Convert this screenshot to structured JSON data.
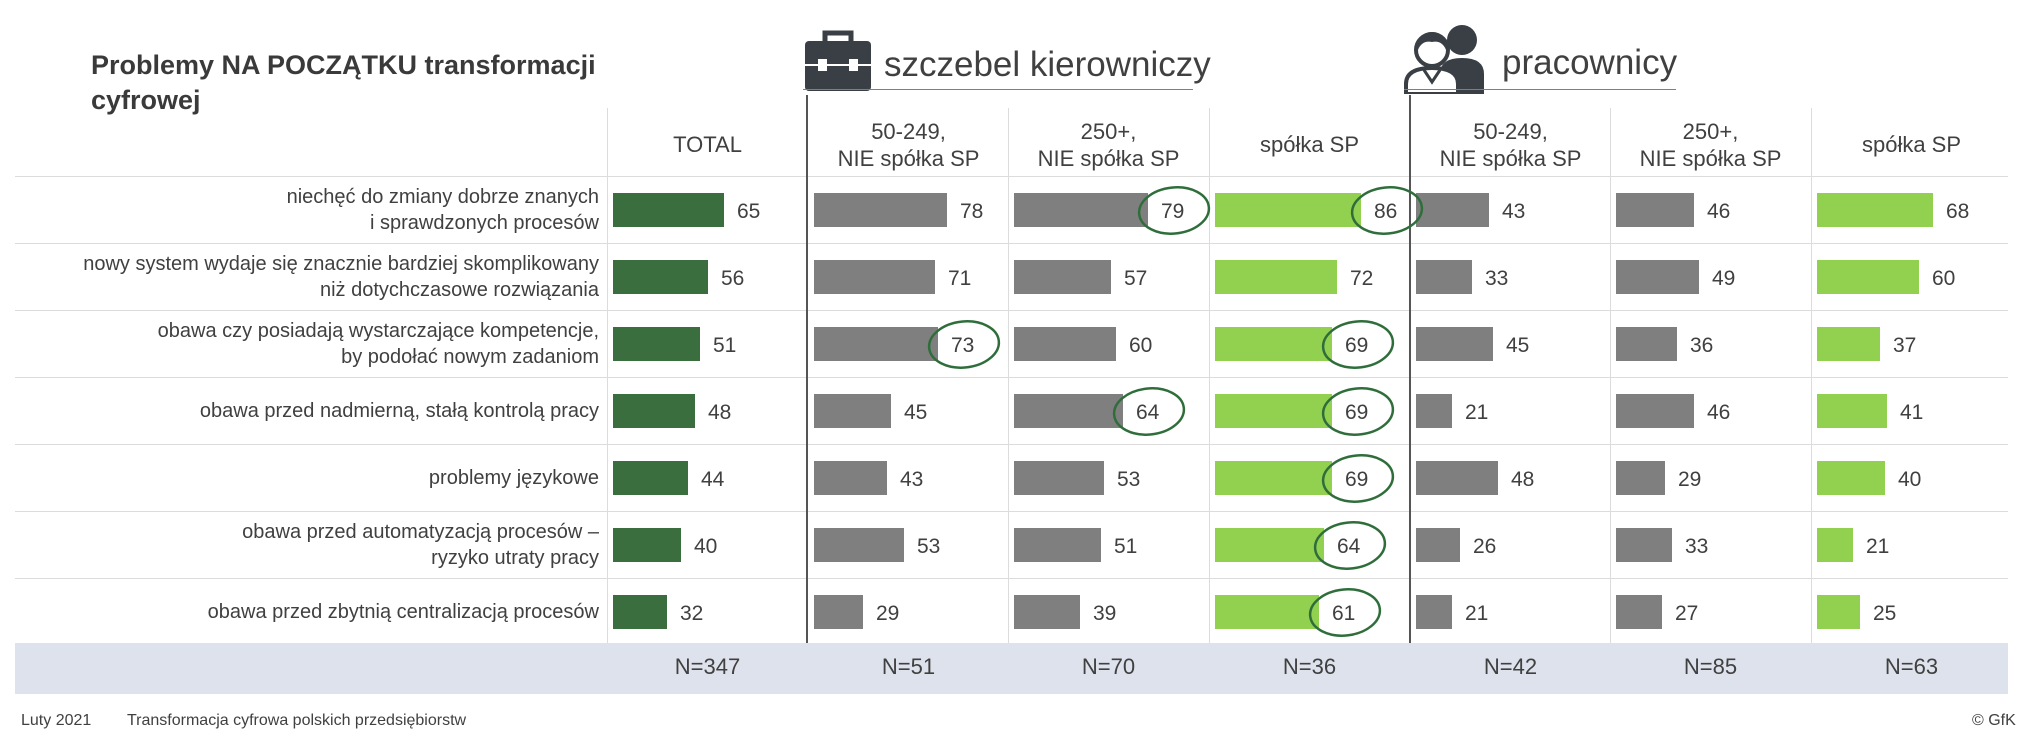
{
  "title": "Problemy NA POCZĄTKU transformacji cyfrowej",
  "groups": {
    "managers": "szczebel kierowniczy",
    "workers": "pracownicy"
  },
  "icons": [
    "briefcase-icon",
    "people-icon"
  ],
  "colors": {
    "total_bar": "#3b6e3f",
    "grey_bar": "#7f7f7f",
    "sp_bar": "#92d050",
    "highlight_circle": "#2f6e3b"
  },
  "footer": {
    "date": "Luty 2021",
    "source": "Transformacja cyfrowa polskich przedsiębiorstw",
    "copyright": "© GfK"
  },
  "chart_data": {
    "type": "bar",
    "title": "Problemy NA POCZĄTKU transformacji cyfrowej",
    "categories": [
      "niechęć do zmiany dobrze znanych\ni sprawdzonych procesów",
      "nowy system wydaje się znacznie bardziej skomplikowany\nniż dotychczasowe rozwiązania",
      "obawa czy posiadają wystarczające kompetencje,\nby podołać nowym zadaniom",
      "obawa przed nadmierną, stałą kontrolą pracy",
      "problemy językowe",
      "obawa przed automatyzacją procesów –\nryzyko utraty pracy",
      "obawa przed zbytnią centralizacją procesów"
    ],
    "series": [
      {
        "name": "TOTAL",
        "group": "",
        "n": "N=347",
        "color": "total",
        "values": [
          65,
          56,
          51,
          48,
          44,
          40,
          32
        ],
        "highlighted": []
      },
      {
        "name": "50-249,\nNIE spółka SP",
        "group": "szczebel kierowniczy",
        "n": "N=51",
        "color": "grey",
        "values": [
          78,
          71,
          73,
          45,
          43,
          53,
          29
        ],
        "highlighted": [
          2
        ]
      },
      {
        "name": "250+,\nNIE spółka SP",
        "group": "szczebel kierowniczy",
        "n": "N=70",
        "color": "grey",
        "values": [
          79,
          57,
          60,
          64,
          53,
          51,
          39
        ],
        "highlighted": [
          0,
          3
        ]
      },
      {
        "name": "spółka SP",
        "group": "szczebel kierowniczy",
        "n": "N=36",
        "color": "sp",
        "values": [
          86,
          72,
          69,
          69,
          69,
          64,
          61
        ],
        "highlighted": [
          0,
          2,
          3,
          4,
          5,
          6
        ]
      },
      {
        "name": "50-249,\nNIE spółka SP",
        "group": "pracownicy",
        "n": "N=42",
        "color": "grey",
        "values": [
          43,
          33,
          45,
          21,
          48,
          26,
          21
        ],
        "highlighted": []
      },
      {
        "name": "250+,\nNIE spółka SP",
        "group": "pracownicy",
        "n": "N=85",
        "color": "grey",
        "values": [
          46,
          49,
          36,
          46,
          29,
          33,
          27
        ],
        "highlighted": []
      },
      {
        "name": "spółka SP",
        "group": "pracownicy",
        "n": "N=63",
        "color": "sp",
        "values": [
          68,
          60,
          37,
          41,
          40,
          21,
          25
        ],
        "highlighted": []
      }
    ],
    "xlim": [
      0,
      100
    ],
    "unit": "%"
  }
}
